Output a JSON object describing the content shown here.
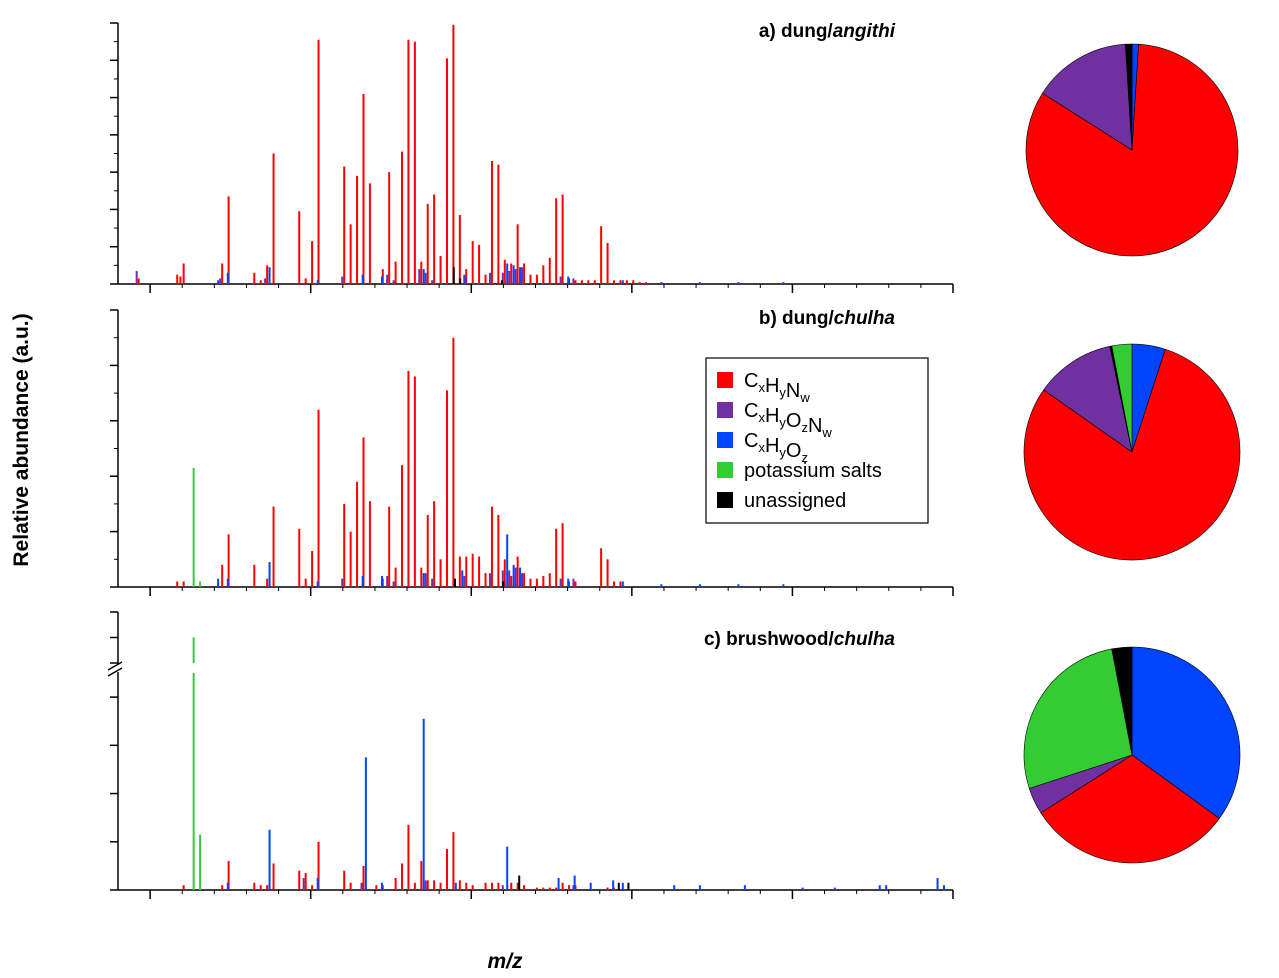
{
  "colors": {
    "CxHyNw": "#ff0000",
    "CxHyOzNw": "#7030a0",
    "CxHyOz": "#0044ff",
    "potassium salts": "#33cc33",
    "unassigned": "#000000"
  },
  "legend": [
    {
      "key": "CxHyNw",
      "main": [
        "C",
        "H",
        "N"
      ],
      "subs": [
        "x",
        "y",
        "w"
      ]
    },
    {
      "key": "CxHyOzNw",
      "main": [
        "C",
        "H",
        "O",
        "N"
      ],
      "subs": [
        "x",
        "y",
        "z",
        "w"
      ]
    },
    {
      "key": "CxHyOz",
      "main": [
        "C",
        "H",
        "O"
      ],
      "subs": [
        "x",
        "y",
        "z"
      ]
    },
    {
      "key": "potassium salts",
      "text": "potassium salts"
    },
    {
      "key": "unassigned",
      "text": "unassigned"
    }
  ],
  "chart_data": [
    {
      "type": "bar",
      "title_prefix": "a) dung/",
      "title_italic": "angithi",
      "ylabel": "Relative abundance (a.u.)",
      "xlabel": "m/z",
      "xlim": [
        90,
        350
      ],
      "ylim": [
        0,
        1.4
      ],
      "yticks": [
        "0.0",
        "0.2",
        "0.4",
        "0.6",
        "0.8",
        "1.0",
        "1.2",
        "1.4"
      ],
      "xticks": [
        "100",
        "150",
        "200",
        "250",
        "300",
        "350"
      ],
      "series": [
        {
          "name": "CxHyNw",
          "x": [
            97,
            109,
            110,
            111,
            123,
            125,
            133,
            135,
            137,
            139,
            147,
            149,
            151,
            153,
            161,
            163,
            165,
            167,
            169,
            173,
            175,
            177,
            179,
            181,
            183,
            185,
            187,
            189,
            191,
            193,
            195,
            197,
            199,
            201,
            203,
            205,
            207,
            209,
            211,
            213,
            215,
            217,
            219,
            221,
            223,
            225,
            227,
            229,
            231,
            233,
            235,
            237,
            239,
            241,
            243,
            245,
            247,
            249,
            251,
            253,
            255
          ],
          "values": [
            0.03,
            0.05,
            0.04,
            0.11,
            0.11,
            0.47,
            0.06,
            0.02,
            0.1,
            0.7,
            0.39,
            0.03,
            0.23,
            1.31,
            0.63,
            0.32,
            0.58,
            1.02,
            0.54,
            0.08,
            0.6,
            0.12,
            0.71,
            1.31,
            1.3,
            0.12,
            0.43,
            0.48,
            0.15,
            1.21,
            1.39,
            0.37,
            0.08,
            0.23,
            0.21,
            0.05,
            0.66,
            0.64,
            0.13,
            0.11,
            0.32,
            0.11,
            0.05,
            0.05,
            0.1,
            0.14,
            0.46,
            0.48,
            0.03,
            0.02,
            0.02,
            0.02,
            0.02,
            0.31,
            0.22,
            0.02,
            0.02,
            0.02,
            0.02,
            0.01,
            0.01
          ]
        },
        {
          "name": "CxHyOzNw",
          "x": [
            96,
            122,
            136,
            160,
            174,
            176,
            184,
            186,
            188,
            198,
            206,
            210,
            212,
            214,
            216,
            228,
            232
          ],
          "values": [
            0.07,
            0.03,
            0.03,
            0.04,
            0.05,
            0.02,
            0.08,
            0.06,
            0.02,
            0.05,
            0.06,
            0.06,
            0.07,
            0.08,
            0.09,
            0.04,
            0.03
          ]
        },
        {
          "name": "CxHyOz",
          "x": [
            121,
            124,
            137,
            152,
            166,
            172,
            185,
            198,
            211,
            213,
            215,
            230,
            247,
            259,
            271,
            283,
            297
          ],
          "values": [
            0.02,
            0.06,
            0.09,
            0.02,
            0.05,
            0.04,
            0.08,
            0.04,
            0.11,
            0.1,
            0.09,
            0.04,
            0.02,
            0.01,
            0.01,
            0.01,
            0.01
          ]
        },
        {
          "name": "unassigned",
          "x": [
            194,
            196,
            209
          ],
          "values": [
            0.09,
            0.03,
            0.02
          ]
        }
      ]
    },
    {
      "type": "bar",
      "title_prefix": "b) dung/",
      "title_italic": "chulha",
      "xlim": [
        90,
        350
      ],
      "ylim": [
        0,
        1.0
      ],
      "yticks": [
        "0.0",
        "0.2",
        "0.4",
        "0.6",
        "0.8",
        "1.0"
      ],
      "xticks": [
        "100",
        "150",
        "200",
        "250",
        "300",
        "350"
      ],
      "series": [
        {
          "name": "CxHyNw",
          "x": [
            109,
            111,
            123,
            125,
            133,
            137,
            139,
            147,
            149,
            151,
            153,
            161,
            163,
            165,
            167,
            169,
            173,
            175,
            177,
            179,
            181,
            183,
            185,
            187,
            189,
            191,
            193,
            195,
            197,
            199,
            201,
            203,
            205,
            207,
            209,
            211,
            213,
            215,
            217,
            219,
            221,
            223,
            225,
            227,
            229,
            231,
            233,
            241,
            243,
            245,
            247
          ],
          "values": [
            0.02,
            0.02,
            0.08,
            0.19,
            0.08,
            0.03,
            0.29,
            0.21,
            0.03,
            0.13,
            0.64,
            0.3,
            0.2,
            0.38,
            0.54,
            0.31,
            0.03,
            0.29,
            0.07,
            0.44,
            0.78,
            0.76,
            0.07,
            0.26,
            0.31,
            0.1,
            0.71,
            0.9,
            0.11,
            0.11,
            0.12,
            0.11,
            0.05,
            0.29,
            0.26,
            0.1,
            0.04,
            0.11,
            0.05,
            0.03,
            0.03,
            0.04,
            0.05,
            0.21,
            0.23,
            0.02,
            0.02,
            0.14,
            0.1,
            0.02,
            0.02
          ]
        },
        {
          "name": "CxHyOzNw",
          "x": [
            160,
            174,
            176,
            186,
            188,
            198,
            206,
            210,
            212,
            214,
            216,
            228,
            232
          ],
          "values": [
            0.03,
            0.04,
            0.02,
            0.05,
            0.03,
            0.04,
            0.05,
            0.06,
            0.06,
            0.07,
            0.05,
            0.03,
            0.03
          ]
        },
        {
          "name": "CxHyOz",
          "x": [
            121,
            124,
            137,
            152,
            166,
            172,
            185,
            197,
            211,
            213,
            215,
            230,
            247,
            259,
            271,
            283,
            297
          ],
          "values": [
            0.03,
            0.03,
            0.09,
            0.02,
            0.04,
            0.04,
            0.05,
            0.06,
            0.19,
            0.08,
            0.07,
            0.03,
            0.02,
            0.01,
            0.01,
            0.01,
            0.01
          ]
        },
        {
          "name": "potassium salts",
          "x": [
            113,
            115
          ],
          "values": [
            0.43,
            0.02
          ]
        },
        {
          "name": "unassigned",
          "x": [
            194,
            209
          ],
          "values": [
            0.03,
            0.02
          ]
        }
      ]
    },
    {
      "type": "bar",
      "title_prefix": "c) brushwood/",
      "title_italic": "chulha",
      "axis_break": true,
      "xlim": [
        90,
        350
      ],
      "ylim_lower": [
        0,
        0.9
      ],
      "ylim_upper": [
        1.6,
        2.0
      ],
      "yticks": [
        "0.0",
        "0.2",
        "0.4",
        "0.6",
        "0.8"
      ],
      "yticks_upper": [
        "1.6",
        "1.8",
        "2.0"
      ],
      "xticks": [
        "100",
        "150",
        "200",
        "250",
        "300",
        "350"
      ],
      "series": [
        {
          "name": "CxHyNw",
          "x": [
            111,
            123,
            125,
            133,
            135,
            137,
            139,
            147,
            149,
            151,
            153,
            161,
            163,
            167,
            171,
            173,
            177,
            179,
            181,
            183,
            185,
            187,
            189,
            191,
            193,
            195,
            197,
            199,
            201,
            205,
            207,
            209,
            213,
            215,
            217,
            221,
            223,
            225,
            227,
            229,
            231,
            233,
            243,
            245
          ],
          "values": [
            0.02,
            0.02,
            0.12,
            0.03,
            0.02,
            0.02,
            0.11,
            0.08,
            0.07,
            0.02,
            0.2,
            0.08,
            0.03,
            0.1,
            0.02,
            0.02,
            0.05,
            0.11,
            0.27,
            0.03,
            0.12,
            0.04,
            0.04,
            0.03,
            0.17,
            0.24,
            0.04,
            0.03,
            0.02,
            0.03,
            0.03,
            0.03,
            0.03,
            0.03,
            0.02,
            0.01,
            0.01,
            0.01,
            0.01,
            0.03,
            0.02,
            0.02,
            0.01,
            0.01
          ]
        },
        {
          "name": "CxHyOzNw",
          "x": [
            148,
            166,
            186,
            210,
            232
          ],
          "values": [
            0.05,
            0.03,
            0.04,
            0.02,
            0.02
          ]
        },
        {
          "name": "CxHyOz",
          "x": [
            124,
            137,
            152,
            167,
            172,
            185,
            195,
            211,
            227,
            232,
            237,
            244,
            247,
            263,
            271,
            285,
            303,
            313,
            327,
            329,
            345,
            347
          ],
          "values": [
            0.03,
            0.25,
            0.05,
            0.55,
            0.03,
            0.71,
            0.03,
            0.18,
            0.05,
            0.06,
            0.03,
            0.04,
            0.03,
            0.02,
            0.02,
            0.02,
            0.01,
            0.01,
            0.02,
            0.02,
            0.05,
            0.02
          ]
        },
        {
          "name": "potassium salts",
          "x": [
            113,
            115
          ],
          "values": [
            1.8,
            0.23
          ]
        },
        {
          "name": "unassigned",
          "x": [
            214,
            245,
            248
          ],
          "values": [
            0.06,
            0.03,
            0.03
          ]
        }
      ]
    }
  ],
  "pies": [
    {
      "type": "pie",
      "slices": [
        {
          "name": "CxHyNw",
          "value": 83,
          "label": "83%"
        },
        {
          "name": "CxHyOzNw",
          "value": 15,
          "label": "15%"
        },
        {
          "name": "unassigned",
          "value": 1,
          "label": "1%"
        },
        {
          "name": "CxHyOz",
          "value": 1,
          "label": "1%"
        }
      ]
    },
    {
      "type": "pie",
      "slices": [
        {
          "name": "CxHyNw",
          "value": 80,
          "label": "80%"
        },
        {
          "name": "CxHyOzNw",
          "value": 12,
          "label": "12%"
        },
        {
          "name": "unassigned",
          "value": 0.3,
          "label": "0.3%"
        },
        {
          "name": "potassium salts",
          "value": 3,
          "label": "3%"
        },
        {
          "name": "CxHyOz",
          "value": 5,
          "label": "5%"
        }
      ]
    },
    {
      "type": "pie",
      "slices": [
        {
          "name": "CxHyOz",
          "value": 35,
          "label": "35%"
        },
        {
          "name": "CxHyNw",
          "value": 31,
          "label": "31%"
        },
        {
          "name": "CxHyOzNw",
          "value": 4,
          "label": "4%"
        },
        {
          "name": "potassium salts",
          "value": 27,
          "label": "27%"
        },
        {
          "name": "unassigned",
          "value": 3,
          "label": "3%"
        }
      ]
    }
  ]
}
